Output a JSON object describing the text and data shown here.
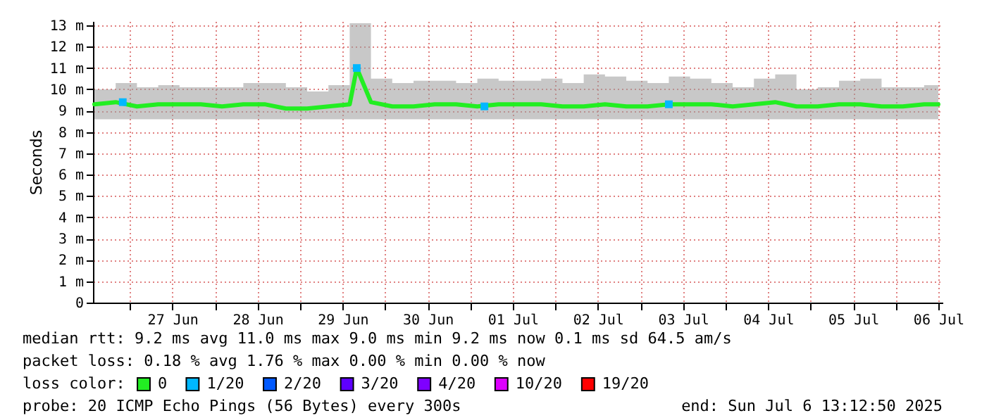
{
  "chart_data": {
    "type": "line",
    "ylabel": "Seconds",
    "legend_title": "loss color:",
    "x": [
      "2025-06-26T14:00",
      "2025-06-26T20:00",
      "2025-06-27T02:00",
      "2025-06-27T08:00",
      "2025-06-27T14:00",
      "2025-06-27T20:00",
      "2025-06-28T02:00",
      "2025-06-28T08:00",
      "2025-06-28T14:00",
      "2025-06-28T20:00",
      "2025-06-29T02:00",
      "2025-06-29T08:00",
      "2025-06-29T14:00",
      "2025-06-29T16:00",
      "2025-06-29T20:00",
      "2025-06-30T02:00",
      "2025-06-30T08:00",
      "2025-06-30T14:00",
      "2025-06-30T20:00",
      "2025-07-01T02:00",
      "2025-07-01T08:00",
      "2025-07-01T14:00",
      "2025-07-01T20:00",
      "2025-07-02T02:00",
      "2025-07-02T08:00",
      "2025-07-02T14:00",
      "2025-07-02T20:00",
      "2025-07-03T02:00",
      "2025-07-03T08:00",
      "2025-07-03T14:00",
      "2025-07-03T20:00",
      "2025-07-04T02:00",
      "2025-07-04T08:00",
      "2025-07-04T14:00",
      "2025-07-04T20:00",
      "2025-07-05T02:00",
      "2025-07-05T08:00",
      "2025-07-05T14:00",
      "2025-07-05T20:00",
      "2025-07-06T02:00",
      "2025-07-06T08:00",
      "2025-07-06T12:00"
    ],
    "series": [
      {
        "name": "0",
        "color": "#22ee22",
        "values": [
          9.3,
          9.4,
          9.2,
          9.3,
          9.3,
          9.3,
          9.2,
          9.3,
          9.3,
          9.1,
          9.1,
          9.2,
          9.3,
          11.0,
          9.4,
          9.2,
          9.2,
          9.3,
          9.3,
          9.2,
          9.3,
          9.3,
          9.3,
          9.2,
          9.2,
          9.3,
          9.2,
          9.2,
          9.3,
          9.3,
          9.3,
          9.2,
          9.3,
          9.4,
          9.2,
          9.2,
          9.3,
          9.3,
          9.2,
          9.2,
          9.3,
          9.3
        ],
        "lower": [
          8.6,
          8.6,
          8.6,
          8.6,
          8.6,
          8.6,
          8.6,
          8.6,
          8.6,
          8.6,
          8.6,
          8.6,
          8.6,
          8.6,
          8.6,
          8.6,
          8.6,
          8.6,
          8.6,
          8.6,
          8.6,
          8.6,
          8.6,
          8.6,
          8.6,
          8.6,
          8.6,
          8.6,
          8.6,
          8.6,
          8.6,
          8.6,
          8.6,
          8.6,
          8.6,
          8.6,
          8.6,
          8.6,
          8.6,
          8.6,
          8.6,
          8.6
        ],
        "upper": [
          10.0,
          10.3,
          10.1,
          10.2,
          10.1,
          10.1,
          10.1,
          10.3,
          10.3,
          10.1,
          9.9,
          10.2,
          13.1,
          13.1,
          10.5,
          10.3,
          10.4,
          10.4,
          10.3,
          10.5,
          10.4,
          10.4,
          10.5,
          10.3,
          10.7,
          10.6,
          10.4,
          10.3,
          10.6,
          10.5,
          10.3,
          10.1,
          10.5,
          10.7,
          10.0,
          10.1,
          10.4,
          10.5,
          10.1,
          10.1,
          10.2,
          10.3
        ]
      },
      {
        "name": "1/20",
        "color": "#00b7ff",
        "type": "scatter",
        "x": [
          "2025-06-26T22:00",
          "2025-06-29T16:00",
          "2025-07-01T04:00",
          "2025-07-03T08:00"
        ],
        "values": [
          9.4,
          11.0,
          9.2,
          9.3
        ]
      },
      {
        "name": "2/20",
        "color": "#0059ff",
        "type": "scatter",
        "values": [
          null,
          null,
          null,
          null,
          null,
          null,
          null,
          null,
          null,
          null,
          null,
          null,
          null,
          null,
          null,
          null,
          null,
          null,
          null,
          null,
          null,
          null,
          null,
          null,
          null,
          null,
          null,
          null,
          null,
          null,
          null,
          null,
          null,
          null,
          null,
          null,
          null,
          null,
          null,
          null,
          null,
          null
        ]
      },
      {
        "name": "3/20",
        "color": "#5e00ff",
        "type": "scatter",
        "values": [
          null,
          null,
          null,
          null,
          null,
          null,
          null,
          null,
          null,
          null,
          null,
          null,
          null,
          null,
          null,
          null,
          null,
          null,
          null,
          null,
          null,
          null,
          null,
          null,
          null,
          null,
          null,
          null,
          null,
          null,
          null,
          null,
          null,
          null,
          null,
          null,
          null,
          null,
          null,
          null,
          null,
          null
        ]
      },
      {
        "name": "4/20",
        "color": "#7e00ff",
        "type": "scatter",
        "values": [
          null,
          null,
          null,
          null,
          null,
          null,
          null,
          null,
          null,
          null,
          null,
          null,
          null,
          null,
          null,
          null,
          null,
          null,
          null,
          null,
          null,
          null,
          null,
          null,
          null,
          null,
          null,
          null,
          null,
          null,
          null,
          null,
          null,
          null,
          null,
          null,
          null,
          null,
          null,
          null,
          null,
          null
        ]
      },
      {
        "name": "10/20",
        "color": "#dd00ff",
        "type": "scatter",
        "values": [
          null,
          null,
          null,
          null,
          null,
          null,
          null,
          null,
          null,
          null,
          null,
          null,
          null,
          null,
          null,
          null,
          null,
          null,
          null,
          null,
          null,
          null,
          null,
          null,
          null,
          null,
          null,
          null,
          null,
          null,
          null,
          null,
          null,
          null,
          null,
          null,
          null,
          null,
          null,
          null,
          null,
          null
        ]
      },
      {
        "name": "19/20",
        "color": "#ff0000",
        "type": "scatter",
        "values": [
          null,
          null,
          null,
          null,
          null,
          null,
          null,
          null,
          null,
          null,
          null,
          null,
          null,
          null,
          null,
          null,
          null,
          null,
          null,
          null,
          null,
          null,
          null,
          null,
          null,
          null,
          null,
          null,
          null,
          null,
          null,
          null,
          null,
          null,
          null,
          null,
          null,
          null,
          null,
          null,
          null,
          null
        ]
      }
    ],
    "xlim": [
      "2025-06-26T13:36",
      "2025-07-06T13:12"
    ],
    "xticks": [
      {
        "value": "2025-06-27T00:00",
        "label": null
      },
      {
        "value": "2025-06-27T12:00",
        "label": "27 Jun"
      },
      {
        "value": "2025-06-28T00:00",
        "label": null
      },
      {
        "value": "2025-06-28T12:00",
        "label": "28 Jun"
      },
      {
        "value": "2025-06-29T00:00",
        "label": null
      },
      {
        "value": "2025-06-29T12:00",
        "label": "29 Jun"
      },
      {
        "value": "2025-06-30T00:00",
        "label": null
      },
      {
        "value": "2025-06-30T12:00",
        "label": "30 Jun"
      },
      {
        "value": "2025-07-01T00:00",
        "label": null
      },
      {
        "value": "2025-07-01T12:00",
        "label": "01 Jul"
      },
      {
        "value": "2025-07-02T00:00",
        "label": null
      },
      {
        "value": "2025-07-02T12:00",
        "label": "02 Jul"
      },
      {
        "value": "2025-07-03T00:00",
        "label": null
      },
      {
        "value": "2025-07-03T12:00",
        "label": "03 Jul"
      },
      {
        "value": "2025-07-04T00:00",
        "label": null
      },
      {
        "value": "2025-07-04T12:00",
        "label": "04 Jul"
      },
      {
        "value": "2025-07-05T00:00",
        "label": null
      },
      {
        "value": "2025-07-05T12:00",
        "label": "05 Jul"
      },
      {
        "value": "2025-07-06T00:00",
        "label": null
      },
      {
        "value": "2025-07-06T12:00",
        "label": "06 Jul"
      }
    ],
    "ylim": [
      0,
      13.2
    ],
    "yticks": [
      0,
      {
        "value": 1,
        "label": "1 m"
      },
      {
        "value": 2,
        "label": "2 m"
      },
      {
        "value": 3,
        "label": "3 m"
      },
      {
        "value": 4,
        "label": "4 m"
      },
      {
        "value": 5,
        "label": "5 m"
      },
      {
        "value": 6,
        "label": "6 m"
      },
      {
        "value": 7,
        "label": "7 m"
      },
      {
        "value": 8,
        "label": "8 m"
      },
      {
        "value": 9,
        "label": "9 m"
      },
      {
        "value": 10,
        "label": "10 m"
      },
      {
        "value": 11,
        "label": "11 m"
      },
      {
        "value": 12,
        "label": "12 m"
      },
      {
        "value": 13,
        "label": "13 m"
      }
    ],
    "grid": true,
    "legend": "bottom",
    "annotations": [
      "median rtt:  9.2 ms avg  11.0 ms max  9.0 ms min  9.2 ms now  0.1 ms sd  64.5   am/s",
      "packet loss: 0.18 % avg  1.76 % max  0.00 % min  0.00 % now",
      "probe:       20 ICMP Echo Pings (56 Bytes) every 300s",
      "end: Sun Jul  6 13:12:50 2025"
    ]
  }
}
